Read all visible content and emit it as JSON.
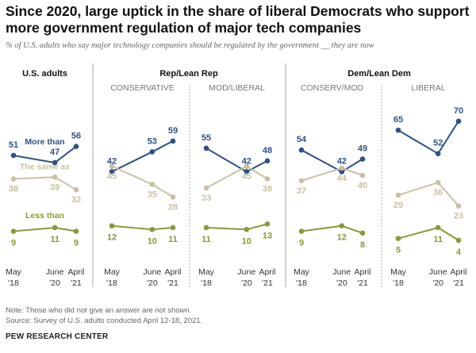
{
  "title": "Since 2020, large uptick in the share of liberal Democrats who support more government regulation of major tech companies",
  "subtitle": "% of U.S. adults who say major technology companies should be regulated by the government __ they are now",
  "groups": [
    {
      "label": "Rep/Lean Rep"
    },
    {
      "label": "Dem/Lean Dem"
    }
  ],
  "colors": {
    "more_than": "#2c5285",
    "same_as": "#c9bfa2",
    "less_than": "#869b3a",
    "divider": "#aaaaaa"
  },
  "chart_data": {
    "type": "line",
    "x": [
      "May '18",
      "June '20",
      "April '21"
    ],
    "x_ticks": [
      {
        "top": "May",
        "bottom": "'18"
      },
      {
        "top": "June",
        "bottom": "'20"
      },
      {
        "top": "April",
        "bottom": "'21"
      }
    ],
    "series_labels": [
      "More than",
      "The same as",
      "Less than"
    ],
    "panels": [
      {
        "title": "U.S. adults",
        "series": [
          {
            "key": "more_than",
            "values": [
              51,
              47,
              56
            ]
          },
          {
            "key": "same_as",
            "values": [
              38,
              39,
              32
            ]
          },
          {
            "key": "less_than",
            "values": [
              9,
              11,
              9
            ]
          }
        ]
      },
      {
        "title": "CONSERVATIVE",
        "series": [
          {
            "key": "more_than",
            "values": [
              42,
              53,
              59
            ]
          },
          {
            "key": "same_as",
            "values": [
              45,
              35,
              28
            ]
          },
          {
            "key": "less_than",
            "values": [
              12,
              10,
              11
            ]
          }
        ]
      },
      {
        "title": "MOD/LIBERAL",
        "series": [
          {
            "key": "more_than",
            "values": [
              55,
              42,
              48
            ]
          },
          {
            "key": "same_as",
            "values": [
              33,
              45,
              38
            ]
          },
          {
            "key": "less_than",
            "values": [
              11,
              10,
              13
            ]
          }
        ]
      },
      {
        "title": "CONSERV/MOD",
        "series": [
          {
            "key": "more_than",
            "values": [
              54,
              42,
              49
            ]
          },
          {
            "key": "same_as",
            "values": [
              37,
              44,
              40
            ]
          },
          {
            "key": "less_than",
            "values": [
              9,
              12,
              8
            ]
          }
        ]
      },
      {
        "title": "LIBERAL",
        "series": [
          {
            "key": "more_than",
            "values": [
              65,
              52,
              70
            ]
          },
          {
            "key": "same_as",
            "values": [
              29,
              36,
              23
            ]
          },
          {
            "key": "less_than",
            "values": [
              5,
              11,
              4
            ]
          }
        ]
      }
    ],
    "ylim": [
      0,
      80
    ],
    "grid": false
  },
  "note": "Note: Those who did not give an answer are not shown.",
  "source": "Source: Survey of U.S. adults conducted April 12-18, 2021.",
  "brand": "PEW RESEARCH CENTER"
}
